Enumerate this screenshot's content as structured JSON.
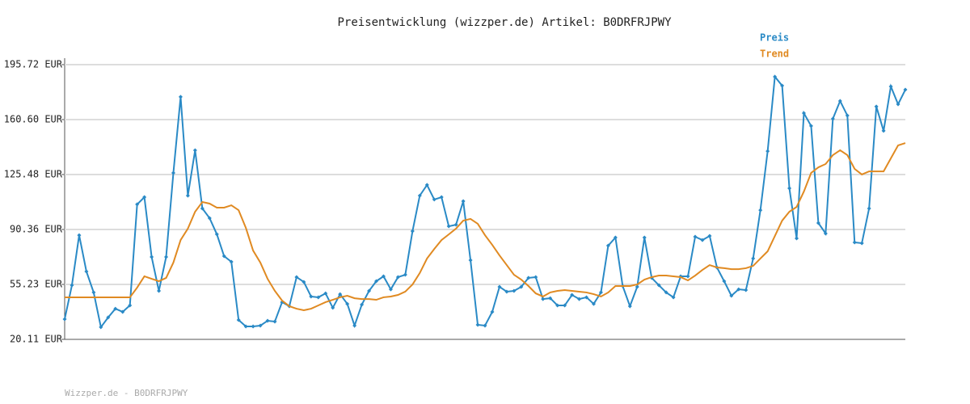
{
  "chart_data": {
    "type": "line",
    "title": "Preisentwicklung (wizzper.de) Artikel: B0DRFRJPWY",
    "footer": "Wizzper.de - B0DRFRJPWY",
    "ylim": [
      20.11,
      195.72
    ],
    "yticks": [
      {
        "value": 20.11,
        "label": "20.11 EUR"
      },
      {
        "value": 55.23,
        "label": "55.23 EUR"
      },
      {
        "value": 90.36,
        "label": "90.36 EUR"
      },
      {
        "value": 125.48,
        "label": "125.48 EUR"
      },
      {
        "value": 160.6,
        "label": "160.60 EUR"
      },
      {
        "value": 195.72,
        "label": "195.72 EUR"
      }
    ],
    "grid": true,
    "series": [
      {
        "name": "Preis",
        "color": "#2a8ac6",
        "markers": true,
        "values": [
          33.0,
          54.7,
          86.7,
          63.5,
          50.1,
          27.9,
          34.1,
          39.7,
          37.7,
          41.8,
          106.4,
          111.0,
          72.8,
          51.1,
          72.8,
          126.5,
          175.1,
          112.0,
          141.0,
          103.8,
          97.6,
          87.3,
          73.3,
          69.7,
          32.5,
          28.4,
          28.4,
          28.9,
          32.0,
          31.5,
          43.9,
          41.3,
          59.9,
          56.8,
          47.5,
          47.0,
          49.5,
          40.3,
          49.0,
          42.8,
          28.9,
          42.3,
          51.1,
          57.3,
          60.4,
          52.1,
          59.9,
          61.4,
          89.3,
          112.0,
          118.8,
          109.5,
          111.0,
          92.4,
          93.4,
          108.4,
          70.7,
          29.4,
          28.9,
          37.7,
          53.7,
          50.6,
          51.1,
          53.7,
          59.4,
          59.9,
          45.9,
          46.4,
          41.8,
          41.8,
          48.5,
          45.9,
          47.0,
          42.8,
          50.1,
          80.0,
          85.2,
          54.2,
          41.3,
          53.7,
          85.2,
          59.4,
          54.7,
          50.1,
          47.0,
          60.4,
          60.4,
          85.7,
          83.6,
          86.2,
          66.1,
          57.3,
          48.0,
          52.1,
          51.6,
          71.8,
          102.7,
          140.4,
          188.0,
          182.3,
          116.7,
          84.7,
          164.7,
          156.5,
          94.5,
          87.8,
          161.1,
          172.5,
          163.2,
          82.1,
          81.6,
          103.8,
          168.9,
          153.4,
          181.8,
          170.4,
          179.7
        ]
      },
      {
        "name": "Trend",
        "color": "#e08a22",
        "markers": false,
        "values": [
          47.0,
          47.0,
          47.0,
          47.0,
          47.0,
          47.0,
          47.0,
          47.0,
          47.0,
          47.0,
          53.2,
          60.4,
          58.8,
          57.3,
          59.4,
          69.2,
          83.6,
          90.9,
          101.7,
          107.9,
          106.9,
          104.3,
          104.3,
          105.8,
          102.7,
          91.4,
          76.9,
          69.2,
          58.8,
          51.1,
          44.9,
          41.3,
          39.7,
          38.7,
          39.7,
          41.8,
          43.9,
          45.4,
          47.0,
          48.0,
          46.4,
          45.9,
          45.9,
          45.4,
          47.0,
          47.5,
          48.5,
          50.6,
          55.2,
          62.5,
          71.8,
          77.9,
          83.6,
          87.2,
          90.9,
          96.0,
          97.1,
          94.0,
          86.7,
          80.5,
          73.8,
          67.6,
          61.4,
          58.3,
          54.2,
          49.5,
          47.5,
          50.1,
          51.1,
          51.6,
          51.1,
          50.6,
          50.1,
          49.0,
          47.5,
          50.1,
          54.2,
          54.2,
          54.2,
          55.2,
          58.3,
          59.9,
          60.9,
          60.9,
          60.4,
          59.9,
          57.8,
          60.9,
          64.5,
          67.6,
          66.1,
          65.6,
          65.0,
          65.0,
          65.6,
          67.1,
          71.8,
          76.4,
          86.2,
          96.0,
          101.7,
          104.8,
          114.6,
          126.5,
          130.1,
          132.2,
          137.9,
          141.0,
          137.9,
          129.1,
          125.5,
          127.5,
          127.5,
          127.5,
          135.8,
          144.1,
          145.6
        ]
      }
    ]
  }
}
